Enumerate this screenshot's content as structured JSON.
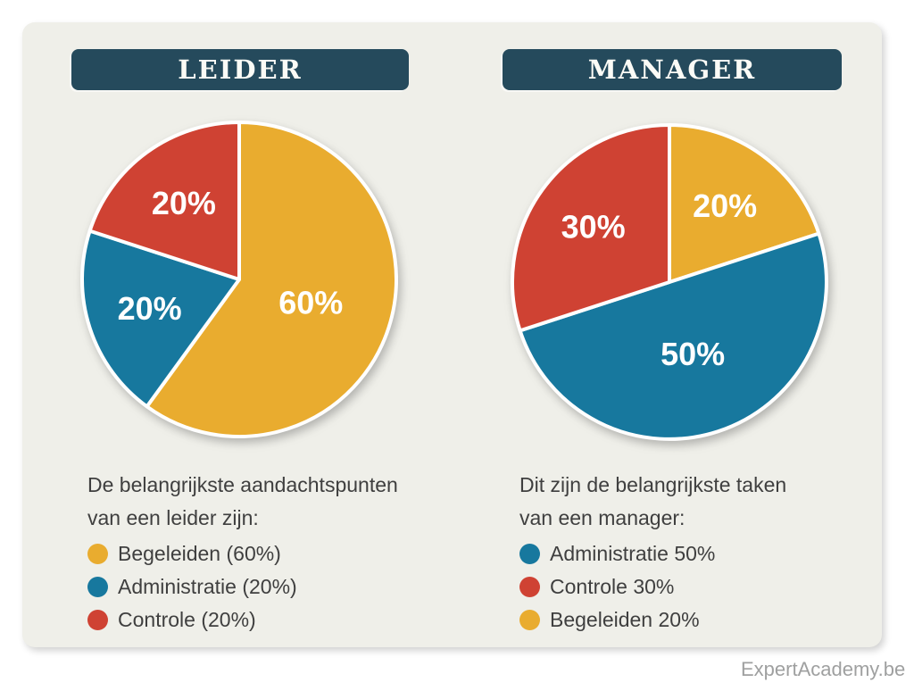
{
  "brand": "ExpertAcademy.be",
  "colors": {
    "yellow": "#E9AC2F",
    "blue": "#17789E",
    "red": "#CF4233",
    "header_bg": "#254A5C",
    "card_bg": "#EFEFE9",
    "body_text": "#3F3F3F",
    "brand_text": "#9FA0A0",
    "slice_label_text": "#FFFFFF"
  },
  "columns": [
    {
      "title": "LEIDER",
      "description_lines": [
        "De belangrijkste aandachtspunten",
        "van een leider zijn:"
      ],
      "legend": [
        {
          "label": "Begeleiden (60%)",
          "color": "#E9AC2F"
        },
        {
          "label": "Administratie (20%)",
          "color": "#17789E"
        },
        {
          "label": "Controle (20%)",
          "color": "#CF4233"
        }
      ]
    },
    {
      "title": "MANAGER",
      "description_lines": [
        "Dit zijn de belangrijkste taken",
        "van een manager:"
      ],
      "legend": [
        {
          "label": "Administratie 50%",
          "color": "#17789E"
        },
        {
          "label": "Controle 30%",
          "color": "#CF4233"
        },
        {
          "label": "Begeleiden 20%",
          "color": "#E9AC2F"
        }
      ]
    }
  ],
  "chart_data": [
    {
      "type": "pie",
      "title": "LEIDER",
      "start_angle_deg": 0,
      "direction": "clockwise",
      "slices": [
        {
          "label": "Begeleiden",
          "value": 60,
          "display": "60%",
          "color": "#E9AC2F"
        },
        {
          "label": "Administratie",
          "value": 20,
          "display": "20%",
          "color": "#17789E"
        },
        {
          "label": "Controle",
          "value": 20,
          "display": "20%",
          "color": "#CF4233"
        }
      ]
    },
    {
      "type": "pie",
      "title": "MANAGER",
      "start_angle_deg": 0,
      "direction": "clockwise",
      "slices": [
        {
          "label": "Begeleiden",
          "value": 20,
          "display": "20%",
          "color": "#E9AC2F"
        },
        {
          "label": "Administratie",
          "value": 50,
          "display": "50%",
          "color": "#17789E"
        },
        {
          "label": "Controle",
          "value": 30,
          "display": "30%",
          "color": "#CF4233"
        }
      ]
    }
  ]
}
